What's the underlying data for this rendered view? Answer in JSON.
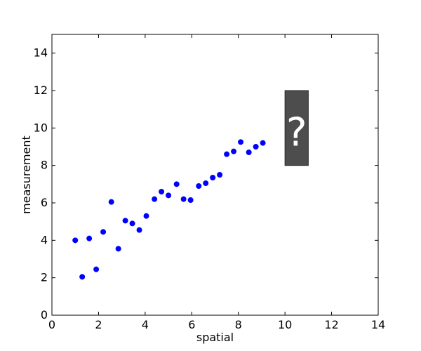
{
  "chart_data": {
    "type": "scatter",
    "title": "",
    "xlabel": "spatial",
    "ylabel": "measurement",
    "xlim": [
      0,
      14
    ],
    "ylim": [
      0,
      15
    ],
    "xticks": [
      0,
      2,
      4,
      6,
      8,
      10,
      12,
      14
    ],
    "yticks": [
      0,
      2,
      4,
      6,
      8,
      10,
      12,
      14
    ],
    "grid": false,
    "series": [
      {
        "color": "#0000ff",
        "points": [
          [
            1.0,
            4.0
          ],
          [
            1.3,
            2.05
          ],
          [
            1.6,
            4.1
          ],
          [
            1.9,
            2.45
          ],
          [
            2.2,
            4.45
          ],
          [
            2.55,
            6.05
          ],
          [
            2.85,
            3.55
          ],
          [
            3.15,
            5.05
          ],
          [
            3.45,
            4.9
          ],
          [
            3.75,
            4.55
          ],
          [
            4.05,
            5.3
          ],
          [
            4.4,
            6.2
          ],
          [
            4.7,
            6.6
          ],
          [
            5.0,
            6.4
          ],
          [
            5.35,
            7.0
          ],
          [
            5.65,
            6.2
          ],
          [
            5.95,
            6.15
          ],
          [
            6.3,
            6.9
          ],
          [
            6.6,
            7.05
          ],
          [
            6.9,
            7.35
          ],
          [
            7.2,
            7.5
          ],
          [
            7.5,
            8.6
          ],
          [
            7.8,
            8.75
          ],
          [
            8.1,
            9.25
          ],
          [
            8.45,
            8.7
          ],
          [
            8.75,
            9.0
          ],
          [
            9.05,
            9.2
          ]
        ]
      }
    ],
    "annotations": [
      {
        "type": "box",
        "x": [
          10,
          11
        ],
        "y": [
          8,
          12
        ],
        "text": "?",
        "fill": "#4d4d4d",
        "stroke": "#262626",
        "text_color": "#ffffff"
      }
    ]
  }
}
